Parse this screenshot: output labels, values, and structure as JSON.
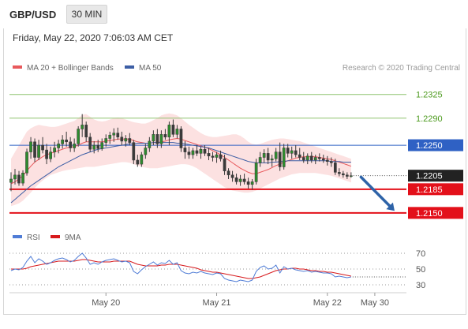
{
  "header": {
    "pair": "GBP/USD",
    "timeframe": "30 MIN",
    "datetime": "Friday, May 22, 2020 7:06:03 AM CET"
  },
  "colors": {
    "ma20": "#e8595c",
    "band_fill": "#fbdcdc",
    "ma50": "#3c5ea5",
    "candle": "#3a3a3a",
    "bull": "#2e8b2e",
    "support": "#e3101a",
    "resistance": "#8ec26f",
    "resistance_text": "#4c9a1e",
    "pivot": "#2f61c4",
    "price_box": "#222222",
    "arrow": "#2e63a8",
    "rsi": "#4f7cd6",
    "rsi_ma": "#d7191c",
    "grid": "#9a9a9a",
    "axis_text": "#555555",
    "credit_text": "#9a9a9a"
  },
  "chart_data": [
    {
      "type": "line",
      "title": "",
      "legend": [
        {
          "name": "MA 20 + Bollinger Bands",
          "color": "#e8595c"
        },
        {
          "name": "MA 50",
          "color": "#3c5ea5"
        }
      ],
      "credit": "Research © 2020 Trading Central",
      "ylim": [
        1.213,
        1.2355
      ],
      "xlim": [
        0,
        100
      ],
      "x_ticks": [
        {
          "x": 24,
          "label": "May 20"
        },
        {
          "x": 52,
          "label": "May 21"
        },
        {
          "x": 80,
          "label": "May 22"
        },
        {
          "x": 92,
          "label": "May 30"
        }
      ],
      "levels": [
        {
          "value": 1.2325,
          "label": "1.2325",
          "kind": "resistance"
        },
        {
          "value": 1.229,
          "label": "1.2290",
          "kind": "resistance"
        },
        {
          "value": 1.225,
          "label": "1.2250",
          "kind": "pivot"
        },
        {
          "value": 1.2185,
          "label": "1.2185",
          "kind": "support"
        },
        {
          "value": 1.215,
          "label": "1.2150",
          "kind": "support"
        }
      ],
      "last_price": {
        "value": 1.2205,
        "label": "1.2205"
      },
      "forecast_arrow": {
        "from": [
          88.5,
          1.2203
        ],
        "to": [
          97,
          1.2153
        ]
      },
      "candles": [
        [
          0,
          1.2195,
          1.221,
          1.2182,
          1.22
        ],
        [
          1,
          1.22,
          1.2215,
          1.2192,
          1.2206
        ],
        [
          2,
          1.2206,
          1.2212,
          1.219,
          1.2194
        ],
        [
          3,
          1.2194,
          1.2213,
          1.219,
          1.2209
        ],
        [
          4,
          1.2209,
          1.2245,
          1.2205,
          1.224
        ],
        [
          5,
          1.224,
          1.2262,
          1.223,
          1.2255
        ],
        [
          6,
          1.2255,
          1.226,
          1.2225,
          1.2232
        ],
        [
          7,
          1.2232,
          1.2258,
          1.2228,
          1.225
        ],
        [
          8,
          1.225,
          1.2262,
          1.2238,
          1.2243
        ],
        [
          9,
          1.2243,
          1.2252,
          1.2222,
          1.223
        ],
        [
          10,
          1.223,
          1.2248,
          1.2225,
          1.224
        ],
        [
          11,
          1.224,
          1.2255,
          1.2232,
          1.2246
        ],
        [
          12,
          1.2246,
          1.2258,
          1.2238,
          1.2252
        ],
        [
          13,
          1.2252,
          1.2265,
          1.2245,
          1.2258
        ],
        [
          14,
          1.2258,
          1.227,
          1.2248,
          1.2255
        ],
        [
          15,
          1.2255,
          1.2262,
          1.224,
          1.2246
        ],
        [
          16,
          1.2246,
          1.226,
          1.224,
          1.2252
        ],
        [
          17,
          1.2252,
          1.2278,
          1.2248,
          1.2274
        ],
        [
          18,
          1.2274,
          1.2296,
          1.2262,
          1.228
        ],
        [
          19,
          1.228,
          1.2285,
          1.2255,
          1.2262
        ],
        [
          20,
          1.2262,
          1.2268,
          1.224,
          1.2244
        ],
        [
          21,
          1.2244,
          1.2256,
          1.2238,
          1.225
        ],
        [
          22,
          1.225,
          1.2258,
          1.224,
          1.2245
        ],
        [
          23,
          1.2245,
          1.226,
          1.2242,
          1.2254
        ],
        [
          24,
          1.2254,
          1.2266,
          1.2248,
          1.226
        ],
        [
          25,
          1.226,
          1.227,
          1.2252,
          1.2265
        ],
        [
          26,
          1.2265,
          1.2275,
          1.2255,
          1.2268
        ],
        [
          27,
          1.2268,
          1.2276,
          1.2258,
          1.2262
        ],
        [
          28,
          1.2262,
          1.227,
          1.225,
          1.2256
        ],
        [
          29,
          1.2256,
          1.2265,
          1.2248,
          1.226
        ],
        [
          30,
          1.226,
          1.2268,
          1.225,
          1.2254
        ],
        [
          31,
          1.2254,
          1.2258,
          1.2222,
          1.2228
        ],
        [
          32,
          1.2228,
          1.2236,
          1.2218,
          1.2222
        ],
        [
          33,
          1.2222,
          1.224,
          1.2218,
          1.2236
        ],
        [
          34,
          1.2236,
          1.2252,
          1.223,
          1.2246
        ],
        [
          35,
          1.2246,
          1.2262,
          1.224,
          1.2256
        ],
        [
          36,
          1.2256,
          1.2272,
          1.225,
          1.2266
        ],
        [
          37,
          1.2266,
          1.2274,
          1.2246,
          1.2252
        ],
        [
          38,
          1.2252,
          1.2272,
          1.2246,
          1.2266
        ],
        [
          39,
          1.2266,
          1.2274,
          1.2258,
          1.2262
        ],
        [
          40,
          1.2262,
          1.2285,
          1.225,
          1.228
        ],
        [
          41,
          1.228,
          1.2288,
          1.2262,
          1.2266
        ],
        [
          42,
          1.2266,
          1.228,
          1.226,
          1.2274
        ],
        [
          43,
          1.2274,
          1.2278,
          1.224,
          1.2246
        ],
        [
          44,
          1.2246,
          1.2256,
          1.223,
          1.224
        ],
        [
          45,
          1.224,
          1.2248,
          1.223,
          1.2236
        ],
        [
          46,
          1.2236,
          1.2246,
          1.223,
          1.2242
        ],
        [
          47,
          1.2242,
          1.225,
          1.2234,
          1.2238
        ],
        [
          48,
          1.2238,
          1.2248,
          1.223,
          1.2244
        ],
        [
          49,
          1.2244,
          1.225,
          1.2234,
          1.2238
        ],
        [
          50,
          1.2238,
          1.2246,
          1.2228,
          1.2234
        ],
        [
          51,
          1.2234,
          1.224,
          1.2226,
          1.2232
        ],
        [
          52,
          1.2232,
          1.224,
          1.2224,
          1.2236
        ],
        [
          53,
          1.2236,
          1.2242,
          1.2226,
          1.223
        ],
        [
          54,
          1.223,
          1.2236,
          1.2206,
          1.2212
        ],
        [
          55,
          1.2212,
          1.2216,
          1.22,
          1.2206
        ],
        [
          56,
          1.2206,
          1.2212,
          1.2196,
          1.2202
        ],
        [
          57,
          1.2202,
          1.2208,
          1.2192,
          1.2196
        ],
        [
          58,
          1.2196,
          1.2206,
          1.219,
          1.22
        ],
        [
          59,
          1.22,
          1.2208,
          1.2192,
          1.2196
        ],
        [
          60,
          1.2196,
          1.2202,
          1.2186,
          1.2192
        ],
        [
          61,
          1.2192,
          1.22,
          1.2184,
          1.2196
        ],
        [
          62,
          1.2196,
          1.223,
          1.2192,
          1.2224
        ],
        [
          63,
          1.2224,
          1.224,
          1.2218,
          1.2232
        ],
        [
          64,
          1.2232,
          1.2244,
          1.2224,
          1.2238
        ],
        [
          65,
          1.2238,
          1.2246,
          1.2222,
          1.2228
        ],
        [
          66,
          1.2228,
          1.2236,
          1.2218,
          1.223
        ],
        [
          67,
          1.223,
          1.2246,
          1.2226,
          1.224
        ],
        [
          68,
          1.224,
          1.2254,
          1.2212,
          1.2218
        ],
        [
          69,
          1.2218,
          1.2252,
          1.2214,
          1.2246
        ],
        [
          70,
          1.2246,
          1.2252,
          1.2232,
          1.2238
        ],
        [
          71,
          1.2238,
          1.2248,
          1.223,
          1.2242
        ],
        [
          72,
          1.2242,
          1.225,
          1.2232,
          1.2236
        ],
        [
          73,
          1.2236,
          1.2246,
          1.2228,
          1.2232
        ],
        [
          74,
          1.2232,
          1.224,
          1.2224,
          1.2228
        ],
        [
          75,
          1.2228,
          1.2238,
          1.2222,
          1.2234
        ],
        [
          76,
          1.2234,
          1.224,
          1.2224,
          1.2228
        ],
        [
          77,
          1.2228,
          1.2236,
          1.2222,
          1.2232
        ],
        [
          78,
          1.2232,
          1.2238,
          1.2226,
          1.223
        ],
        [
          79,
          1.223,
          1.2236,
          1.2224,
          1.2228
        ],
        [
          80,
          1.2228,
          1.2234,
          1.222,
          1.2226
        ],
        [
          81,
          1.2226,
          1.2232,
          1.2218,
          1.2224
        ],
        [
          82,
          1.2224,
          1.223,
          1.2206,
          1.221
        ],
        [
          83,
          1.221,
          1.2216,
          1.2204,
          1.2208
        ],
        [
          84,
          1.2208,
          1.2212,
          1.2202,
          1.2206
        ],
        [
          85,
          1.2206,
          1.221,
          1.22,
          1.2204
        ],
        [
          86,
          1.2204,
          1.221,
          1.2202,
          1.2205
        ]
      ],
      "ma20": [
        1.2193,
        1.2196,
        1.22,
        1.2205,
        1.2212,
        1.2219,
        1.2225,
        1.2229,
        1.2233,
        1.2236,
        1.2238,
        1.224,
        1.2242,
        1.2244,
        1.2246,
        1.2247,
        1.2248,
        1.225,
        1.2253,
        1.2255,
        1.2255,
        1.2255,
        1.2255,
        1.2255,
        1.2256,
        1.2257,
        1.2258,
        1.2259,
        1.2259,
        1.2259,
        1.2259,
        1.2257,
        1.2255,
        1.2254,
        1.2253,
        1.2253,
        1.2254,
        1.2254,
        1.2255,
        1.2256,
        1.2258,
        1.2259,
        1.226,
        1.2259,
        1.2257,
        1.2255,
        1.2253,
        1.2251,
        1.2249,
        1.2247,
        1.2245,
        1.2242,
        1.2239,
        1.2236,
        1.2232,
        1.2228,
        1.2224,
        1.222,
        1.2216,
        1.2213,
        1.221,
        1.2208,
        1.2208,
        1.221,
        1.2212,
        1.2214,
        1.2217,
        1.222,
        1.2222,
        1.2225,
        1.2227,
        1.2229,
        1.2231,
        1.2232,
        1.2233,
        1.2233,
        1.2233,
        1.2233,
        1.2232,
        1.2231,
        1.223,
        1.2229,
        1.2227,
        1.2225,
        1.2223,
        1.2221,
        1.2219
      ],
      "band_upper": [
        1.223,
        1.224,
        1.225,
        1.226,
        1.227,
        1.2275,
        1.2278,
        1.228,
        1.2279,
        1.2278,
        1.2277,
        1.2277,
        1.2278,
        1.228,
        1.2282,
        1.2284,
        1.2286,
        1.229,
        1.2295,
        1.2296,
        1.2292,
        1.2288,
        1.2286,
        1.2285,
        1.2286,
        1.2288,
        1.229,
        1.2291,
        1.229,
        1.2288,
        1.2286,
        1.2284,
        1.2283,
        1.2282,
        1.2282,
        1.2284,
        1.2287,
        1.229,
        1.2294,
        1.2296,
        1.2297,
        1.2296,
        1.2294,
        1.229,
        1.2285,
        1.228,
        1.2276,
        1.2272,
        1.2268,
        1.2265,
        1.2263,
        1.2262,
        1.2262,
        1.2263,
        1.2264,
        1.2265,
        1.2266,
        1.2266,
        1.2264,
        1.226,
        1.2255,
        1.2252,
        1.2251,
        1.2252,
        1.2254,
        1.2256,
        1.2258,
        1.2259,
        1.226,
        1.226,
        1.2259,
        1.2258,
        1.2257,
        1.2256,
        1.2254,
        1.2252,
        1.225,
        1.2248,
        1.2246,
        1.2244,
        1.2242,
        1.224,
        1.2238,
        1.2236,
        1.2234,
        1.2232,
        1.223
      ],
      "band_lower": [
        1.216,
        1.2162,
        1.2164,
        1.2168,
        1.2174,
        1.218,
        1.2187,
        1.2193,
        1.2198,
        1.2202,
        1.2206,
        1.2208,
        1.221,
        1.2212,
        1.2213,
        1.2214,
        1.2215,
        1.2216,
        1.2217,
        1.2218,
        1.2218,
        1.2218,
        1.2219,
        1.222,
        1.2221,
        1.2222,
        1.2223,
        1.2224,
        1.2225,
        1.2225,
        1.2224,
        1.2222,
        1.222,
        1.2218,
        1.2217,
        1.2216,
        1.2216,
        1.2216,
        1.2217,
        1.2218,
        1.2219,
        1.222,
        1.2221,
        1.2222,
        1.2222,
        1.2221,
        1.2219,
        1.2216,
        1.2212,
        1.2208,
        1.2204,
        1.22,
        1.2196,
        1.2192,
        1.2188,
        1.2185,
        1.2183,
        1.2182,
        1.2181,
        1.218,
        1.218,
        1.2181,
        1.2183,
        1.2186,
        1.2189,
        1.2192,
        1.2195,
        1.2198,
        1.2201,
        1.2203,
        1.2205,
        1.2207,
        1.2208,
        1.2209,
        1.2209,
        1.2209,
        1.2209,
        1.2209,
        1.2208,
        1.2207,
        1.2206,
        1.2205,
        1.2203,
        1.2201,
        1.2199,
        1.2197,
        1.2195
      ],
      "ma50": [
        1.2165,
        1.217,
        1.2175,
        1.218,
        1.2185,
        1.219,
        1.2194,
        1.2198,
        1.2202,
        1.2206,
        1.221,
        1.2214,
        1.2218,
        1.2221,
        1.2224,
        1.2227,
        1.223,
        1.2233,
        1.2236,
        1.2238,
        1.224,
        1.2242,
        1.2244,
        1.2245,
        1.2246,
        1.2247,
        1.2248,
        1.2249,
        1.225,
        1.2251,
        1.2252,
        1.2252,
        1.2253,
        1.2253,
        1.2253,
        1.2253,
        1.2254,
        1.2254,
        1.2254,
        1.2254,
        1.2254,
        1.2254,
        1.2253,
        1.2253,
        1.2252,
        1.2251,
        1.225,
        1.2249,
        1.2248,
        1.2247,
        1.2246,
        1.2244,
        1.2242,
        1.224,
        1.2238,
        1.2236,
        1.2234,
        1.2232,
        1.223,
        1.2228,
        1.2226,
        1.2225,
        1.2224,
        1.2224,
        1.2224,
        1.2224,
        1.2225,
        1.2225,
        1.2226,
        1.2226,
        1.2227,
        1.2227,
        1.2227,
        1.2227,
        1.2227,
        1.2227,
        1.2227,
        1.2227,
        1.2227,
        1.2227,
        1.2227,
        1.2226,
        1.2226,
        1.2226,
        1.2225,
        1.2225,
        1.2225
      ]
    },
    {
      "type": "line",
      "title": "",
      "legend": [
        {
          "name": "RSI",
          "color": "#4f7cd6"
        },
        {
          "name": "9MA",
          "color": "#d7191c"
        }
      ],
      "ylim": [
        25,
        75
      ],
      "ticks": [
        {
          "value": 70,
          "label": "70"
        },
        {
          "value": 50,
          "label": "50"
        },
        {
          "value": 30,
          "label": "30"
        }
      ],
      "rsi": [
        48,
        50,
        49,
        52,
        60,
        66,
        58,
        63,
        60,
        56,
        58,
        61,
        63,
        64,
        62,
        59,
        61,
        66,
        70,
        64,
        56,
        58,
        56,
        59,
        61,
        62,
        63,
        61,
        59,
        60,
        58,
        47,
        44,
        49,
        53,
        56,
        59,
        55,
        58,
        57,
        61,
        56,
        58,
        48,
        45,
        44,
        46,
        45,
        47,
        45,
        44,
        43,
        45,
        44,
        38,
        36,
        35,
        34,
        36,
        35,
        34,
        36,
        47,
        52,
        54,
        50,
        51,
        55,
        45,
        53,
        50,
        51,
        49,
        48,
        47,
        48,
        46,
        47,
        46,
        45,
        45,
        44,
        40,
        41,
        40,
        39,
        40
      ],
      "rsi_ma": [
        50,
        50,
        50,
        50,
        51,
        53,
        54,
        55,
        56,
        57,
        58,
        59,
        60,
        60,
        60,
        60,
        60,
        61,
        62,
        62,
        61,
        60,
        59,
        59,
        59,
        59,
        60,
        60,
        60,
        60,
        60,
        58,
        56,
        55,
        54,
        54,
        54,
        54,
        55,
        55,
        56,
        56,
        56,
        55,
        54,
        53,
        52,
        51,
        49,
        48,
        47,
        46,
        46,
        45,
        44,
        43,
        42,
        41,
        40,
        39,
        38,
        38,
        39,
        40,
        42,
        44,
        46,
        48,
        49,
        50,
        50,
        51,
        51,
        50,
        50,
        49,
        48,
        48,
        47,
        47,
        46,
        46,
        45,
        44,
        43,
        42,
        41
      ]
    }
  ]
}
